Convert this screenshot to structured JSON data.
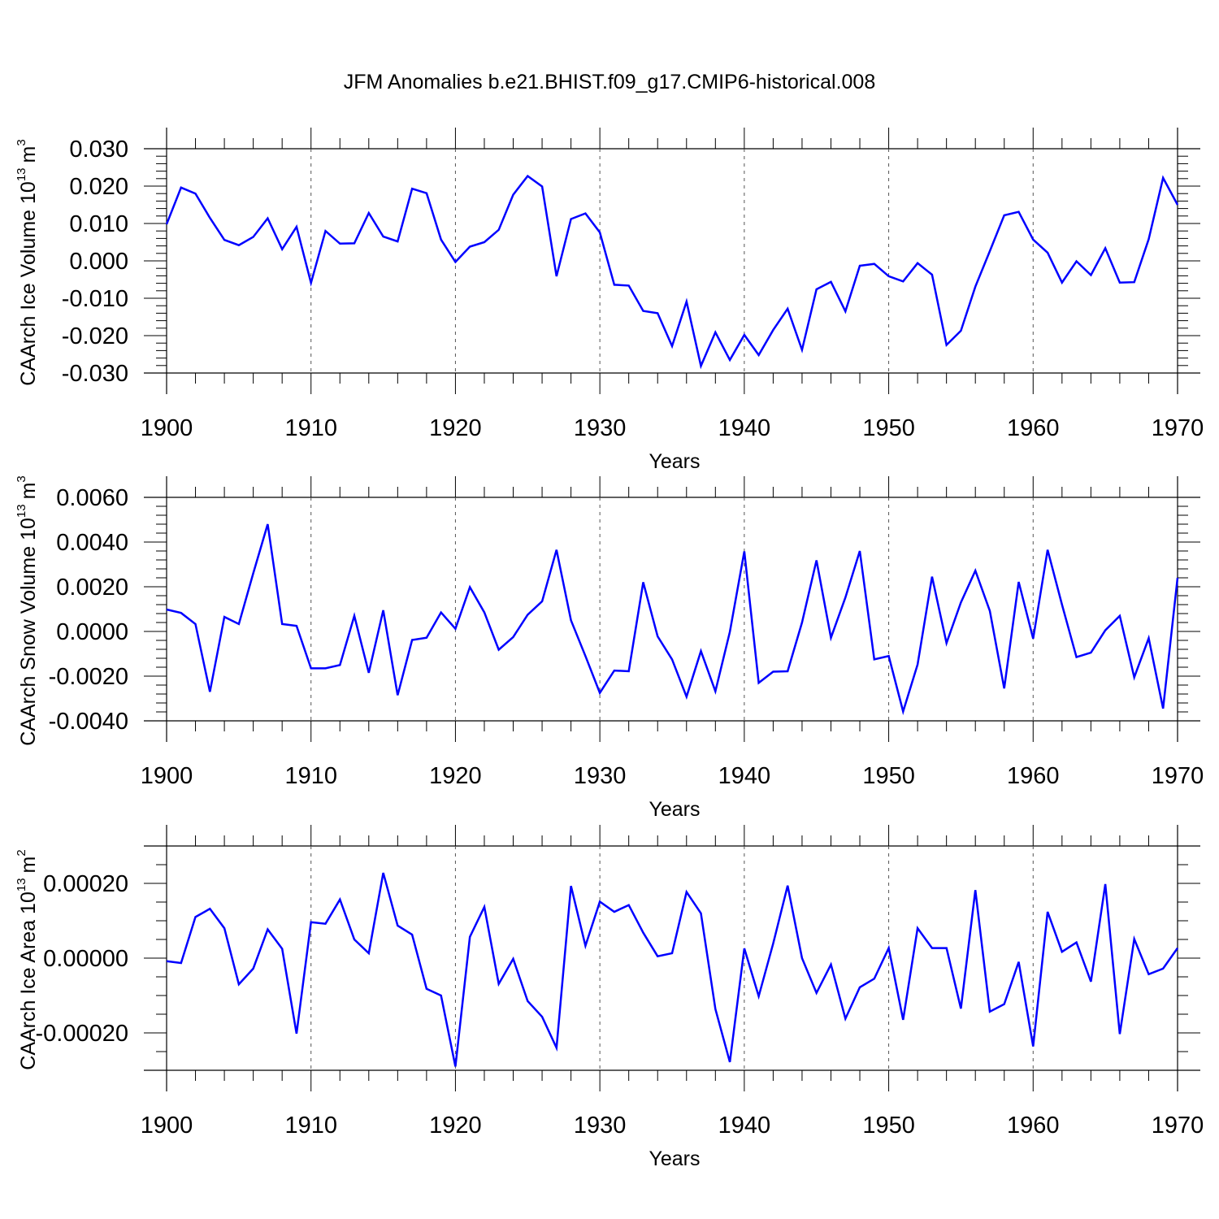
{
  "title": "JFM Anomalies b.e21.BHIST.f09_g17.CMIP6-historical.008",
  "colors": {
    "series": "#0000ff",
    "axes": "#000000",
    "grid": "#555555"
  },
  "chart_data": [
    {
      "type": "line",
      "ylabel": "CAArch Ice Volume",
      "yunit_base": "10",
      "yunit_exp": "13",
      "yunit_tail": "m",
      "yunit_tail_exp": "3",
      "xlabel": "Years",
      "xlim": [
        1900,
        1970
      ],
      "ylim": [
        -0.03,
        0.03
      ],
      "yticks": [
        0.03,
        0.02,
        0.01,
        0.0,
        -0.01,
        -0.02,
        -0.03
      ],
      "ytick_labels": [
        "0.030",
        "0.020",
        "0.010",
        "0.000",
        "-0.010",
        "-0.020",
        "-0.030"
      ],
      "yminor": 0.002,
      "xticks": [
        1900,
        1910,
        1920,
        1930,
        1940,
        1950,
        1960,
        1970
      ],
      "xtick_labels": [
        "1900",
        "1910",
        "1920",
        "1930",
        "1940",
        "1950",
        "1960",
        "1970"
      ],
      "grid_x": [
        1910,
        1920,
        1930,
        1940,
        1950,
        1960
      ],
      "x_start": 1900,
      "values": [
        0.0098,
        0.0196,
        0.018,
        0.0115,
        0.0056,
        0.0042,
        0.0064,
        0.0114,
        0.0031,
        0.0091,
        -0.0059,
        0.008,
        0.0046,
        0.0047,
        0.0128,
        0.0065,
        0.0052,
        0.0193,
        0.0181,
        0.0057,
        -0.0003,
        0.0038,
        0.005,
        0.0083,
        0.0177,
        0.0227,
        0.0199,
        -0.0041,
        0.0112,
        0.0127,
        0.0076,
        -0.0064,
        -0.0066,
        -0.0134,
        -0.014,
        -0.0228,
        -0.0109,
        -0.0281,
        -0.0191,
        -0.0265,
        -0.0198,
        -0.0252,
        -0.0185,
        -0.0128,
        -0.0238,
        -0.0076,
        -0.0056,
        -0.0135,
        -0.0013,
        -0.0008,
        -0.0041,
        -0.0055,
        -0.0006,
        -0.0037,
        -0.0225,
        -0.0187,
        -0.0069,
        0.0026,
        0.0122,
        0.0131,
        0.0057,
        0.0022,
        -0.0058,
        -0.0001,
        -0.0038,
        0.0034,
        -0.0058,
        -0.0057,
        0.0058,
        0.0222,
        0.015
      ]
    },
    {
      "type": "line",
      "ylabel": "CAArch Snow Volume",
      "yunit_base": "10",
      "yunit_exp": "13",
      "yunit_tail": "m",
      "yunit_tail_exp": "3",
      "xlabel": "Years",
      "xlim": [
        1900,
        1970
      ],
      "ylim": [
        -0.004,
        0.006
      ],
      "yticks": [
        0.006,
        0.004,
        0.002,
        0.0,
        -0.002,
        -0.004
      ],
      "ytick_labels": [
        "0.0060",
        "0.0040",
        "0.0020",
        "0.0000",
        "-0.0020",
        "-0.0040"
      ],
      "yminor": 0.0004,
      "xticks": [
        1900,
        1910,
        1920,
        1930,
        1940,
        1950,
        1960,
        1970
      ],
      "xtick_labels": [
        "1900",
        "1910",
        "1920",
        "1930",
        "1940",
        "1950",
        "1960",
        "1970"
      ],
      "grid_x": [
        1910,
        1920,
        1930,
        1940,
        1950,
        1960
      ],
      "x_start": 1900,
      "values": [
        0.00098,
        0.00083,
        0.00033,
        -0.0027,
        0.00065,
        0.00033,
        0.0026,
        0.0048,
        0.00033,
        0.00025,
        -0.00165,
        -0.00165,
        -0.0015,
        0.0007,
        -0.00185,
        0.00095,
        -0.00285,
        -0.00038,
        -0.00028,
        0.00085,
        0.00012,
        0.00198,
        0.00085,
        -0.00082,
        -0.00025,
        0.00075,
        0.00135,
        0.00365,
        0.0005,
        -0.0011,
        -0.00275,
        -0.00175,
        -0.00178,
        0.0022,
        -0.00022,
        -0.00125,
        -0.00292,
        -0.00088,
        -0.00268,
        -2e-05,
        0.00358,
        -0.0023,
        -0.0018,
        -0.00178,
        0.0004,
        0.00318,
        -0.00028,
        0.00152,
        0.0036,
        -0.00125,
        -0.0011,
        -0.00358,
        -0.00148,
        0.00245,
        -0.00052,
        0.0013,
        0.00272,
        0.00092,
        -0.00255,
        0.00222,
        -0.00032,
        0.00365,
        0.0012,
        -0.00115,
        -0.00095,
        5e-05,
        0.0007,
        -0.00205,
        -0.0003,
        -0.00345,
        0.0024
      ]
    },
    {
      "type": "line",
      "ylabel": "CAArch Ice Area",
      "yunit_base": "10",
      "yunit_exp": "13",
      "yunit_tail": "m",
      "yunit_tail_exp": "2",
      "xlabel": "Years",
      "xlim": [
        1900,
        1970
      ],
      "ylim": [
        -0.0003,
        0.0003
      ],
      "yticks": [
        0.0002,
        0.0,
        -0.0002
      ],
      "ytick_labels": [
        "0.00020",
        "0.00000",
        "-0.00020"
      ],
      "yminor": 5e-05,
      "xticks": [
        1900,
        1910,
        1920,
        1930,
        1940,
        1950,
        1960,
        1970
      ],
      "xtick_labels": [
        "1900",
        "1910",
        "1920",
        "1930",
        "1940",
        "1950",
        "1960",
        "1970"
      ],
      "grid_x": [
        1910,
        1920,
        1930,
        1940,
        1950,
        1960
      ],
      "x_start": 1900,
      "values": [
        -8e-06,
        -1.3e-05,
        0.00011,
        0.000132,
        8e-05,
        -7e-05,
        -2.8e-05,
        7.7e-05,
        2.5e-05,
        -0.000202,
        9.6e-05,
        9.2e-05,
        0.000157,
        5e-05,
        1.3e-05,
        0.000228,
        8.7e-05,
        6.3e-05,
        -8.2e-05,
        -0.0001,
        -0.00029,
        5.7e-05,
        0.000137,
        -6.9e-05,
        -2e-06,
        -0.000115,
        -0.000157,
        -0.00024,
        0.000193,
        3.3e-05,
        0.000151,
        0.000124,
        0.000142,
        6.8e-05,
        5e-06,
        1.3e-05,
        0.000177,
        0.00012,
        -0.000136,
        -0.000278,
        2.6e-05,
        -0.000102,
        3.9e-05,
        0.000194,
        0.0,
        -9.3e-05,
        -1.7e-05,
        -0.000162,
        -7.8e-05,
        -5.5e-05,
        2.7e-05,
        -0.000165,
        8e-05,
        2.7e-05,
        2.7e-05,
        -0.000135,
        0.000182,
        -0.000143,
        -0.000123,
        -1e-05,
        -0.000236,
        0.000124,
        1.7e-05,
        4.2e-05,
        -6.3e-05,
        0.000198,
        -0.000203,
        5.1e-05,
        -4.3e-05,
        -2.8e-05,
        2.7e-05
      ]
    }
  ]
}
